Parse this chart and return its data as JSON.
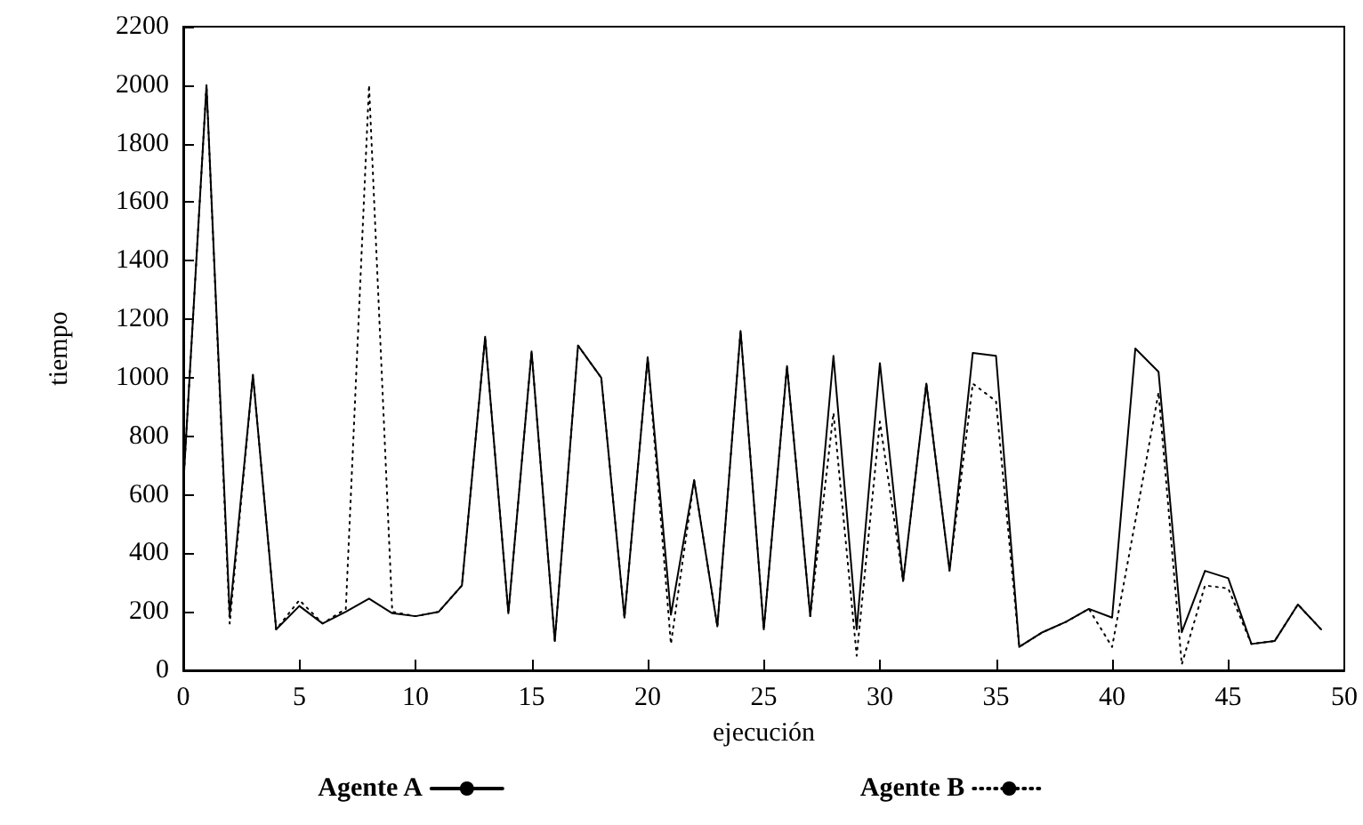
{
  "chart_data": {
    "type": "line",
    "xlabel": "ejecución",
    "ylabel": "tiempo",
    "x": [
      0,
      1,
      2,
      3,
      4,
      5,
      6,
      7,
      8,
      9,
      10,
      11,
      12,
      13,
      14,
      15,
      16,
      17,
      18,
      19,
      20,
      21,
      22,
      23,
      24,
      25,
      26,
      27,
      28,
      29,
      30,
      31,
      32,
      33,
      34,
      35,
      36,
      37,
      38,
      39,
      40,
      41,
      42,
      43,
      44,
      45,
      46,
      47,
      48,
      49
    ],
    "series": [
      {
        "name": "Agente A",
        "color": "#000000",
        "line_style": "solid",
        "values": [
          630,
          2000,
          190,
          1010,
          140,
          220,
          160,
          200,
          245,
          195,
          185,
          200,
          290,
          1140,
          195,
          1090,
          100,
          1110,
          1000,
          180,
          1070,
          190,
          650,
          150,
          1160,
          140,
          1040,
          185,
          1075,
          140,
          1050,
          305,
          980,
          340,
          1085,
          1075,
          80,
          130,
          165,
          210,
          180,
          1100,
          1020,
          130,
          340,
          315,
          90,
          100,
          225,
          140
        ]
      },
      {
        "name": "Agente B",
        "color": "#000000",
        "line_style": "dotted",
        "values": [
          630,
          2000,
          160,
          1010,
          140,
          240,
          160,
          210,
          2000,
          200,
          185,
          200,
          290,
          1140,
          195,
          1090,
          100,
          1110,
          1000,
          180,
          1070,
          90,
          650,
          150,
          1160,
          140,
          1040,
          185,
          880,
          50,
          850,
          305,
          980,
          340,
          980,
          920,
          80,
          130,
          165,
          210,
          80,
          510,
          950,
          20,
          290,
          280,
          90,
          100,
          225,
          140
        ]
      }
    ],
    "xlim": [
      0,
      50
    ],
    "xticks": [
      0,
      5,
      10,
      15,
      20,
      25,
      30,
      35,
      40,
      45,
      50
    ],
    "ylim": [
      0,
      2200
    ],
    "yticks": [
      0,
      200,
      400,
      600,
      800,
      1000,
      1200,
      1400,
      1600,
      1800,
      2000,
      2200
    ],
    "grid": false,
    "legend": "bottom",
    "marker": "none"
  }
}
